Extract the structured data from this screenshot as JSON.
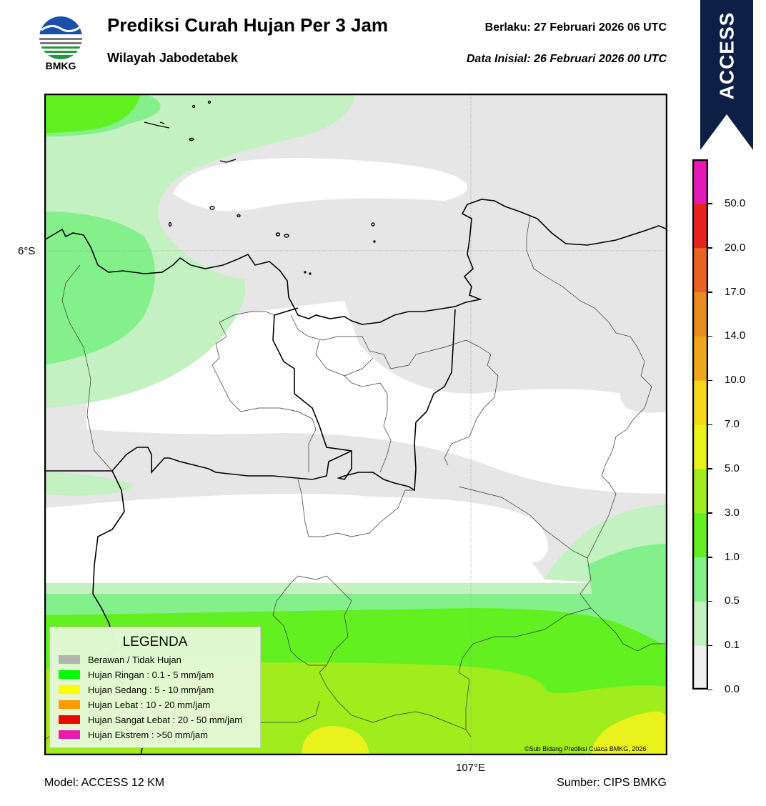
{
  "header": {
    "title": "Prediksi Curah Hujan Per 3 Jam",
    "subtitle": "Wilayah Jabodetabek",
    "valid": "Berlaku:  27 Februari 2026 06 UTC",
    "initial": "Data Inisial:  26 Februari 2026 00 UTC",
    "logo_text": "BMKG"
  },
  "banner": {
    "label": "ACCESS",
    "color": "#0d1f45"
  },
  "map": {
    "lat_label": "6°S",
    "lon_label": "107°E",
    "copyright": "©Sub Bidang Prediksi Cuaca BMKG, 2026"
  },
  "legend": {
    "title": "LEGENDA",
    "items": [
      {
        "label": "Berawan / Tidak Hujan",
        "color": "#b4b4b4"
      },
      {
        "label": "Hujan Ringan : 0.1 - 5 mm/jam",
        "color": "#00ff00"
      },
      {
        "label": "Hujan Sedang : 5 - 10 mm/jam",
        "color": "#ffff00"
      },
      {
        "label": "Hujan Lebat : 10 - 20 mm/jam",
        "color": "#ff9900"
      },
      {
        "label": "Hujan Sangat Lebat : 20 - 50 mm/jam",
        "color": "#ee0000"
      },
      {
        "label": "Hujan Ekstrem : >50 mm/jam",
        "color": "#ee11bb"
      }
    ]
  },
  "colorbar": {
    "ticks": [
      "50.0",
      "20.0",
      "17.0",
      "14.0",
      "10.0",
      "7.0",
      "5.0",
      "3.0",
      "1.0",
      "0.5",
      "0.1",
      "0.0"
    ],
    "colors": [
      "#f0f0f0",
      "#c3f1c1",
      "#84f08c",
      "#62f020",
      "#a0ec1c",
      "#e9f21c",
      "#f5d71a",
      "#f0a61b",
      "#ea8a1f",
      "#e86221",
      "#e8231d",
      "#e41ab8"
    ]
  },
  "footer": {
    "model": "Model: ACCESS 12 KM",
    "source": "Sumber: CIPS BMKG"
  }
}
